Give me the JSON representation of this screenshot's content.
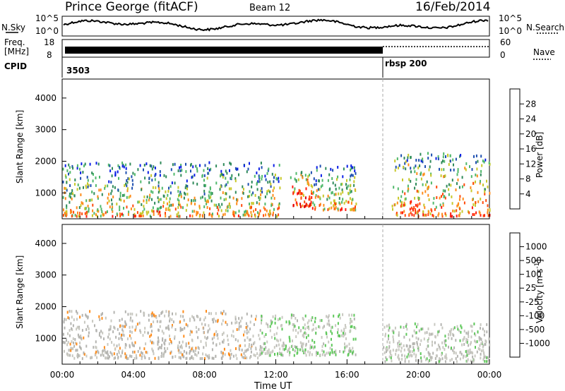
{
  "header": {
    "station": "Prince George (fitACF)",
    "beam": "Beam 12",
    "date": "16/Feb/2014"
  },
  "noise_panel": {
    "left_label": "N.Sky",
    "left_ticks": [
      "10^5",
      "10^0"
    ],
    "right_label": "N.Search",
    "right_ticks": [
      "10^5",
      "10^0"
    ]
  },
  "freq_panel": {
    "left_label_line1": "Freq.",
    "left_label_line2": "[MHz]",
    "left_ticks": [
      "18",
      "8"
    ],
    "right_label": "Nave",
    "right_ticks": [
      "60",
      "0"
    ]
  },
  "cpid_panel": {
    "label": "CPID",
    "modes": [
      {
        "name": "3503",
        "start_hour": 0
      },
      {
        "name": "rbsp 200",
        "start_hour": 18
      }
    ]
  },
  "x_axis": {
    "label": "Time UT",
    "range_hours": [
      0,
      24
    ],
    "tick_labels": [
      "00:00",
      "04:00",
      "08:00",
      "12:00",
      "16:00",
      "20:00",
      "00:00"
    ]
  },
  "colors": {
    "power_scale": [
      "#0a1ee6",
      "#1e4fb0",
      "#2f8a5a",
      "#4fb86a",
      "#c8c82a",
      "#ff8c1a",
      "#ff4a0a",
      "#ff1a10",
      "#e00000"
    ],
    "velocity_scale": [
      "#1e3c9e",
      "#2e7ac0",
      "#2e8a5a",
      "#5ec85a",
      "#c8c8c0",
      "#b4b4b0",
      "#ff8c1a",
      "#ff5a10",
      "#e00000"
    ]
  },
  "chart_data": [
    {
      "type": "heatmap",
      "title": "Power",
      "xlabel": "Time UT",
      "ylabel": "Slant Range [km]",
      "xlim_hours": [
        0,
        24
      ],
      "ylim": [
        180,
        4600
      ],
      "yticks": [
        1000,
        2000,
        3000,
        4000
      ],
      "colorbar": {
        "label": "Power [dB]",
        "ticks": [
          "4",
          "8",
          "12",
          "16",
          "20",
          "24",
          "28"
        ],
        "range": [
          0,
          32
        ]
      },
      "scatter_regions": [
        {
          "t_start": 0.0,
          "t_end": 12.3,
          "r_low": 300,
          "r_high": 2000,
          "level": 0.6
        },
        {
          "t_start": 12.8,
          "t_end": 14.0,
          "r_low": 600,
          "r_high": 1700,
          "level": 0.85
        },
        {
          "t_start": 14.0,
          "t_end": 16.5,
          "r_low": 500,
          "r_high": 1900,
          "level": 0.6
        },
        {
          "t_start": 18.5,
          "t_end": 24.0,
          "r_low": 300,
          "r_high": 2300,
          "level": 0.7
        }
      ]
    },
    {
      "type": "heatmap",
      "title": "Velocity",
      "xlabel": "Time UT",
      "ylabel": "Slant Range [km]",
      "xlim_hours": [
        0,
        24
      ],
      "ylim": [
        180,
        4600
      ],
      "yticks": [
        1000,
        2000,
        3000,
        4000
      ],
      "colorbar": {
        "label": "Velocity [m s-1]",
        "label_display": "Velocity  [m s",
        "label_superscript": "-1",
        "label_close": "]",
        "ticks": [
          "-1000",
          "-500",
          "-100",
          "-25",
          "25",
          "100",
          "500",
          "1000"
        ],
        "range": [
          -1200,
          1200
        ]
      },
      "scatter_regions": [
        {
          "t_start": 0.0,
          "t_end": 11.0,
          "r_low": 400,
          "r_high": 1900,
          "v": -200
        },
        {
          "t_start": 11.0,
          "t_end": 16.5,
          "r_low": 500,
          "r_high": 1800,
          "v": 60
        },
        {
          "t_start": 18.0,
          "t_end": 24.0,
          "r_low": 300,
          "r_high": 1500,
          "v": 0
        }
      ]
    }
  ]
}
